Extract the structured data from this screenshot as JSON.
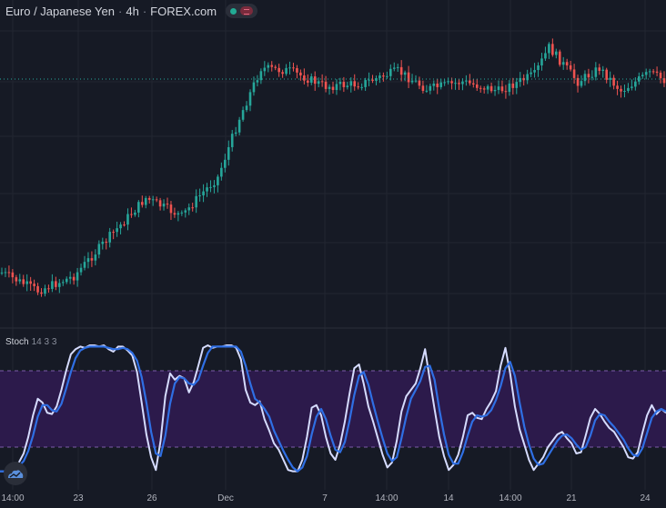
{
  "header": {
    "symbol": "Euro / Japanese Yen",
    "interval": "4h",
    "source": "FOREX.com",
    "live_status_icon": "green-dot-icon",
    "market_closed_icon": "market-closed-icon"
  },
  "indicator": {
    "name": "Stoch",
    "params": "14 3 3",
    "band_color": "#2c1a4b",
    "k_color": "#d6dcff",
    "d_color": "#2f6fe4"
  },
  "colors": {
    "up": "#26a69a",
    "down": "#ef5350",
    "background": "#161a25",
    "grid": "#222631"
  },
  "x_axis": {
    "ticks": [
      "14:00",
      "23",
      "26",
      "Dec",
      "7",
      "14:00",
      "14",
      "14:00",
      "21",
      "24"
    ]
  },
  "chart_data": [
    {
      "type": "candlestick",
      "title": "Euro / Japanese Yen · 4h · FOREX.com",
      "x_labels": [
        "14:00",
        "23",
        "26",
        "Dec",
        "7",
        "14:00",
        "14",
        "14:00",
        "21",
        "24"
      ],
      "close_trend_key_points": [
        {
          "bar": 0,
          "close": 300
        },
        {
          "bar": 10,
          "close": 320
        },
        {
          "bar": 20,
          "close": 304
        },
        {
          "bar": 30,
          "close": 260
        },
        {
          "bar": 40,
          "close": 218
        },
        {
          "bar": 50,
          "close": 238
        },
        {
          "bar": 55,
          "close": 215
        },
        {
          "bar": 60,
          "close": 195
        },
        {
          "bar": 66,
          "close": 130
        },
        {
          "bar": 72,
          "close": 75
        },
        {
          "bar": 80,
          "close": 78
        },
        {
          "bar": 90,
          "close": 95
        },
        {
          "bar": 100,
          "close": 92
        },
        {
          "bar": 110,
          "close": 78
        },
        {
          "bar": 118,
          "close": 98
        },
        {
          "bar": 128,
          "close": 90
        },
        {
          "bar": 138,
          "close": 100
        },
        {
          "bar": 148,
          "close": 82
        },
        {
          "bar": 152,
          "close": 52
        },
        {
          "bar": 160,
          "close": 90
        },
        {
          "bar": 166,
          "close": 75
        },
        {
          "bar": 172,
          "close": 100
        },
        {
          "bar": 180,
          "close": 80
        },
        {
          "bar": 184,
          "close": 88
        }
      ],
      "last_price_line": 87
    },
    {
      "type": "line",
      "title": "Stoch 14 3 3",
      "ylim": [
        0,
        100
      ],
      "bands": [
        20,
        80
      ],
      "series": [
        {
          "name": "%K",
          "values": [
            1,
            1,
            2,
            4,
            8,
            15,
            28,
            45,
            58,
            55,
            47,
            46,
            52,
            65,
            80,
            93,
            97,
            99,
            98,
            100,
            100,
            99,
            100,
            97,
            95,
            99,
            99,
            96,
            92,
            79,
            55,
            30,
            12,
            2,
            25,
            60,
            78,
            73,
            76,
            74,
            63,
            71,
            84,
            98,
            100,
            98,
            99,
            99,
            100,
            100,
            98,
            89,
            65,
            55,
            53,
            56,
            42,
            33,
            23,
            18,
            10,
            2,
            1,
            1,
            10,
            28,
            51,
            53,
            45,
            28,
            15,
            10,
            22,
            40,
            62,
            82,
            85,
            70,
            52,
            40,
            27,
            14,
            4,
            8,
            25,
            48,
            60,
            65,
            70,
            82,
            97,
            73,
            50,
            28,
            13,
            2,
            6,
            14,
            28,
            45,
            47,
            43,
            42,
            50,
            56,
            64,
            84,
            98,
            78,
            52,
            34,
            22,
            10,
            2,
            7,
            12,
            20,
            25,
            30,
            32,
            27,
            23,
            15,
            16,
            29,
            43,
            50,
            46,
            40,
            35,
            32,
            26,
            20,
            12,
            11,
            16,
            31,
            45,
            53,
            46,
            50,
            47
          ],
          "color": "#d6dcff"
        },
        {
          "name": "%D",
          "values": [
            1,
            1,
            2,
            3,
            5,
            9,
            17,
            29,
            44,
            53,
            53,
            49,
            48,
            54,
            66,
            79,
            90,
            96,
            98,
            99,
            99,
            99,
            99,
            98,
            97,
            97,
            98,
            97,
            94,
            88,
            75,
            55,
            32,
            15,
            13,
            29,
            54,
            70,
            75,
            74,
            70,
            69,
            73,
            84,
            94,
            99,
            99,
            99,
            99,
            99,
            99,
            95,
            84,
            70,
            58,
            55,
            50,
            44,
            33,
            25,
            17,
            10,
            4,
            1,
            4,
            13,
            30,
            44,
            50,
            42,
            29,
            18,
            16,
            24,
            41,
            61,
            76,
            79,
            69,
            54,
            40,
            27,
            15,
            9,
            12,
            27,
            44,
            58,
            65,
            72,
            83,
            84,
            73,
            50,
            30,
            14,
            7,
            7,
            16,
            29,
            40,
            45,
            44,
            45,
            49,
            57,
            68,
            82,
            87,
            76,
            55,
            36,
            22,
            11,
            6,
            7,
            13,
            19,
            25,
            29,
            30,
            27,
            22,
            18,
            20,
            29,
            41,
            46,
            45,
            40,
            36,
            31,
            26,
            19,
            14,
            13,
            19,
            31,
            43,
            48,
            50,
            48
          ],
          "color": "#2f6fe4"
        }
      ]
    }
  ]
}
